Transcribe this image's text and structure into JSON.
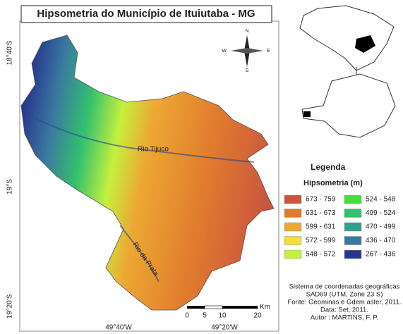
{
  "title": "Hipsometria do Município de Ituiutaba - MG",
  "latitudes": [
    "18°40'S",
    "19°S",
    "19°20'S"
  ],
  "longitudes": [
    "49°40'W",
    "49°20'W"
  ],
  "compass": {
    "n": "N",
    "s": "S",
    "e": "E",
    "w": "W"
  },
  "rivers": [
    "Rio Tijuco",
    "Rio da Prata"
  ],
  "legend": {
    "title": "Legenda",
    "subtitle": "Hipsometria (m)",
    "items": [
      {
        "label": "673 - 759",
        "color": "#c9553f"
      },
      {
        "label": "631 - 673",
        "color": "#e07b2e"
      },
      {
        "label": "599 - 631",
        "color": "#eda833"
      },
      {
        "label": "572 - 599",
        "color": "#f2df3a"
      },
      {
        "label": "548 - 572",
        "color": "#c6f03e"
      },
      {
        "label": "524 - 548",
        "color": "#44df3c"
      },
      {
        "label": "499 - 524",
        "color": "#33c06e"
      },
      {
        "label": "470 - 499",
        "color": "#2f9f8f"
      },
      {
        "label": "436 - 470",
        "color": "#3a79a0"
      },
      {
        "label": "267 - 436",
        "color": "#28368e"
      }
    ]
  },
  "scale": {
    "ticks": [
      "0",
      "5",
      "10",
      "20"
    ],
    "unit": "Km"
  },
  "credits": [
    "Sistema de coordenadas geográficas",
    "SAD69 (UTM, Zone 23 S)",
    "Fonte: Geominas e Gdem aster, 2011.",
    "Data: Set, 2011.",
    "Autor : MARTINS, F. P."
  ]
}
